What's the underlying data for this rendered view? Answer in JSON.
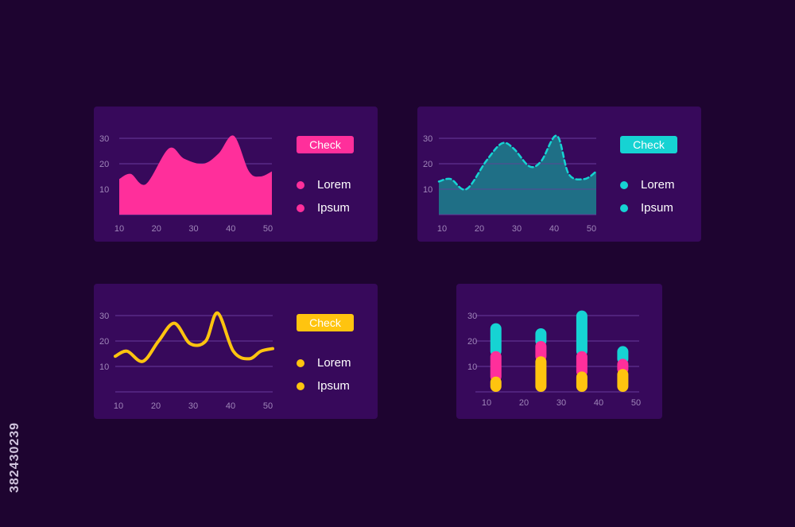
{
  "stock_id": "382430239",
  "colors": {
    "background": "#1e0430",
    "card": "#37095b",
    "grid": "#6a3a9c",
    "tick": "#9f86b9",
    "pink": "#ff2f9b",
    "teal": "#16d3d3",
    "teal_fill": "#1f6f86",
    "yellow": "#ffc40f"
  },
  "cards": [
    {
      "button": "Check",
      "legend": [
        "Lorem",
        "Ipsum"
      ]
    },
    {
      "button": "Check",
      "legend": [
        "Lorem",
        "Ipsum"
      ]
    },
    {
      "button": "Check",
      "legend": [
        "Lorem",
        "Ipsum"
      ]
    }
  ],
  "chart_data": [
    {
      "type": "area",
      "color": "#ff2f9b",
      "x_ticks": [
        10,
        20,
        30,
        40,
        50
      ],
      "y_ticks": [
        10,
        20,
        30
      ],
      "ylim": [
        0,
        35
      ],
      "xlim": [
        10,
        50
      ],
      "grid": true,
      "x": [
        10,
        13,
        17,
        23,
        27,
        32,
        36,
        40,
        44,
        47,
        50
      ],
      "values": [
        14,
        16,
        12,
        26,
        22,
        20,
        24,
        31,
        17,
        15,
        17
      ]
    },
    {
      "type": "area",
      "color": "#16d3d3",
      "fill": "#1f6f86",
      "line_style": "dashed",
      "x_ticks": [
        10,
        20,
        30,
        40,
        50
      ],
      "y_ticks": [
        10,
        20,
        30
      ],
      "ylim": [
        0,
        35
      ],
      "xlim": [
        10,
        50
      ],
      "grid": true,
      "x": [
        10,
        13,
        17,
        22,
        26,
        29,
        33,
        36,
        40,
        43,
        47,
        50
      ],
      "values": [
        13,
        14,
        10,
        21,
        28,
        26,
        19,
        21,
        31,
        16,
        14,
        17
      ]
    },
    {
      "type": "line",
      "color": "#ffc40f",
      "x_ticks": [
        10,
        20,
        30,
        40,
        50
      ],
      "y_ticks": [
        10,
        20,
        30
      ],
      "ylim": [
        0,
        35
      ],
      "xlim": [
        10,
        50
      ],
      "grid": true,
      "x": [
        10,
        13,
        17,
        21,
        25,
        29,
        33,
        36,
        40,
        44,
        47,
        50
      ],
      "values": [
        14,
        16,
        12,
        20,
        27,
        19,
        20,
        31,
        16,
        13,
        16,
        17
      ]
    },
    {
      "type": "bar",
      "stacked": true,
      "x_ticks": [
        10,
        20,
        30,
        40,
        50
      ],
      "y_ticks": [
        10,
        20,
        30
      ],
      "ylim": [
        0,
        35
      ],
      "xlim": [
        10,
        50
      ],
      "grid": true,
      "x": [
        15,
        26,
        36,
        46
      ],
      "series": [
        {
          "color": "#ffc40f",
          "values": [
            6,
            14,
            8,
            9
          ]
        },
        {
          "color": "#ff2f9b",
          "values": [
            10,
            6,
            8,
            4
          ]
        },
        {
          "color": "#16d3d3",
          "values": [
            11,
            5,
            16,
            5
          ]
        }
      ]
    }
  ]
}
